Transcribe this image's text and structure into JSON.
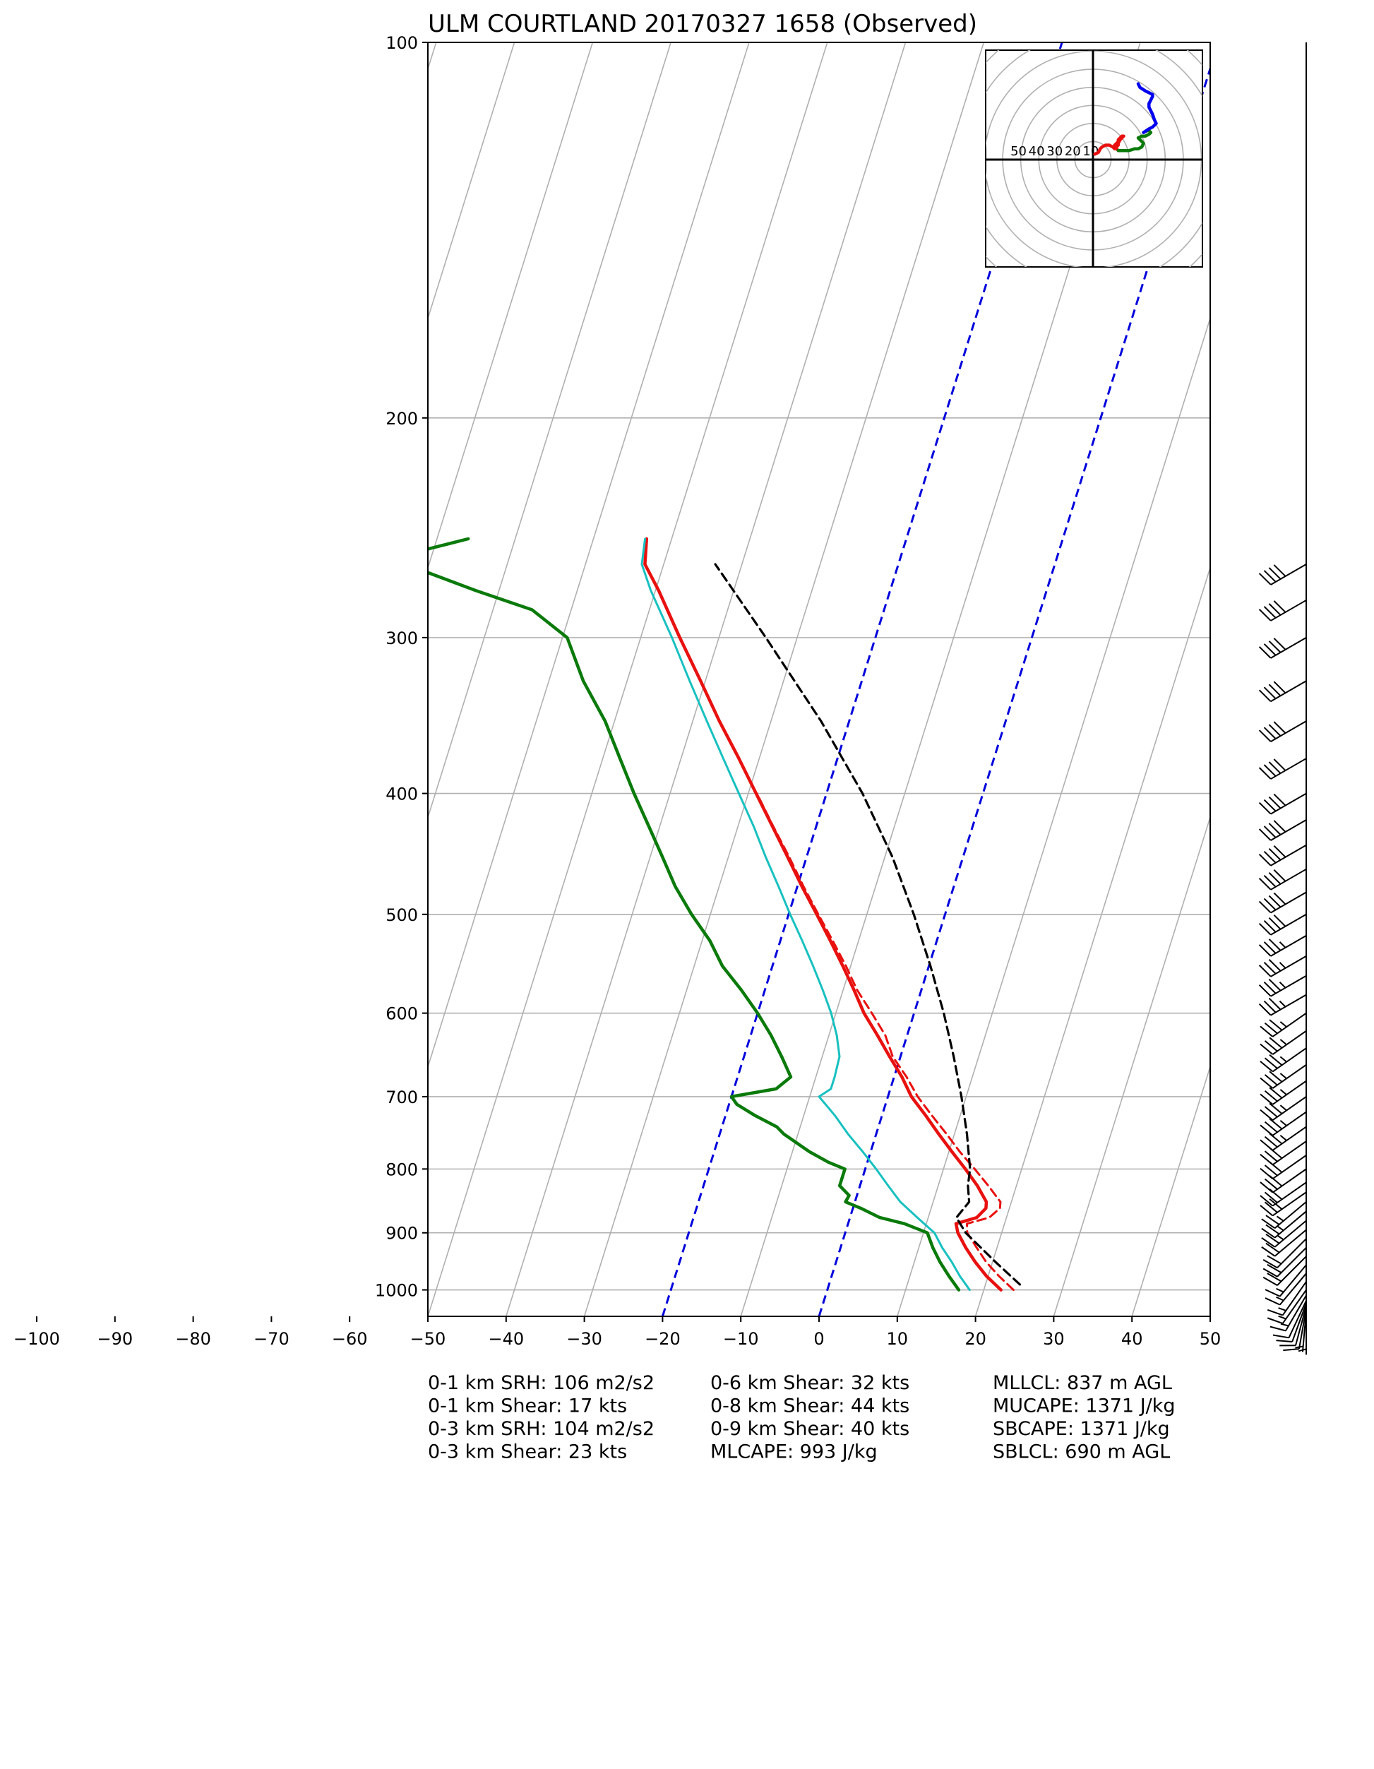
{
  "chart_data": [
    {
      "type": "line",
      "subtype": "skew-t log-p sounding",
      "title": "ULM COURTLAND 20170327 1658   (Observed)",
      "xlabel": "",
      "ylabel": "",
      "x_ticks": [
        -100,
        -90,
        -80,
        -70,
        -60,
        -50,
        -40,
        -30,
        -20,
        -10,
        0,
        10,
        20,
        30,
        40,
        50
      ],
      "y_ticks": [
        100,
        200,
        300,
        400,
        500,
        600,
        700,
        800,
        900,
        1000
      ],
      "xlim": [
        -50,
        50
      ],
      "ylim": [
        1050,
        100
      ],
      "yscale": "log",
      "grid": true,
      "skew_degrees_per_decade": 50,
      "colors": {
        "temperature": "#e8110f",
        "virtual_temperature": "#e8110f",
        "dewpoint": "#0a7a0a",
        "wetbulb": "#18c0c0",
        "parcel": "#000000",
        "isotherms_highlight": "#0000dd",
        "grid": "#b0b0b0",
        "hodo_low": "#e8110f",
        "hodo_mid": "#0a7a0a",
        "hodo_high": "#0000ee"
      },
      "highlight_isotherms": [
        -20,
        0
      ],
      "series": [
        {
          "key": "temperature",
          "pressure": [
            1000,
            975,
            950,
            925,
            900,
            885,
            875,
            860,
            850,
            825,
            800,
            775,
            750,
            725,
            700,
            675,
            650,
            625,
            600,
            575,
            550,
            525,
            500,
            475,
            450,
            425,
            400,
            375,
            350,
            325,
            300,
            275,
            262,
            250
          ],
          "values": [
            22.2,
            19.8,
            17.8,
            16.0,
            14.4,
            13.8,
            16.2,
            17.0,
            16.8,
            15.0,
            12.8,
            10.4,
            8.0,
            5.6,
            3.0,
            1.0,
            -1.4,
            -3.8,
            -6.4,
            -8.6,
            -11.0,
            -13.6,
            -16.4,
            -19.4,
            -22.4,
            -25.6,
            -29.0,
            -32.6,
            -36.6,
            -40.6,
            -45.0,
            -49.6,
            -52.4,
            -53.2
          ]
        },
        {
          "key": "virtual_temperature",
          "pressure": [
            1000,
            975,
            950,
            925,
            900,
            885,
            875,
            860,
            850,
            825,
            800,
            775,
            750,
            725,
            700,
            675,
            650,
            625,
            600,
            575,
            550,
            525,
            500,
            475,
            450,
            425,
            400
          ],
          "values": [
            23.8,
            21.4,
            19.2,
            17.4,
            15.6,
            15.2,
            17.8,
            18.8,
            18.6,
            16.4,
            14.0,
            11.4,
            9.0,
            6.4,
            3.8,
            1.6,
            -1.0,
            -2.8,
            -5.4,
            -8.2,
            -10.6,
            -13.3,
            -16.2,
            -19.2,
            -22.2,
            -25.5,
            -28.9
          ]
        },
        {
          "key": "dewpoint",
          "pressure": [
            1000,
            975,
            950,
            925,
            900,
            885,
            875,
            860,
            850,
            840,
            825,
            800,
            790,
            775,
            750,
            740,
            725,
            710,
            700,
            690,
            675,
            650,
            625,
            600,
            575,
            550,
            525,
            500,
            475,
            450,
            425,
            400,
            375,
            350,
            325,
            300,
            285,
            275,
            262,
            255,
            250
          ],
          "values": [
            16.8,
            15.0,
            13.3,
            11.8,
            10.5,
            7.2,
            3.8,
            1.0,
            -1.2,
            -1.0,
            -2.6,
            -2.6,
            -5.0,
            -7.8,
            -11.8,
            -13.0,
            -16.2,
            -19.0,
            -20.0,
            -14.6,
            -13.2,
            -15.2,
            -17.4,
            -20.0,
            -23.0,
            -26.4,
            -29.0,
            -32.4,
            -35.6,
            -38.4,
            -41.4,
            -44.6,
            -47.8,
            -51.2,
            -55.6,
            -59.4,
            -65.0,
            -73.0,
            -83.0,
            -81.0,
            -76.0
          ]
        },
        {
          "key": "wetbulb",
          "pressure": [
            1000,
            975,
            950,
            925,
            900,
            875,
            850,
            825,
            800,
            775,
            750,
            725,
            700,
            690,
            675,
            650,
            625,
            600,
            575,
            550,
            525,
            500,
            475,
            450,
            425,
            400,
            375,
            350,
            325,
            300,
            275,
            262,
            250
          ],
          "values": [
            18.2,
            16.4,
            14.8,
            13.0,
            11.4,
            8.6,
            5.8,
            3.6,
            1.4,
            -1.0,
            -3.6,
            -6.0,
            -8.8,
            -7.6,
            -7.6,
            -7.8,
            -9.0,
            -10.6,
            -12.6,
            -14.8,
            -17.2,
            -19.8,
            -22.4,
            -25.2,
            -28.0,
            -31.2,
            -34.6,
            -38.2,
            -42.0,
            -46.0,
            -50.6,
            -52.8,
            -53.4
          ]
        },
        {
          "key": "parcel",
          "pressure": [
            990,
            950,
            900,
            875,
            850,
            825,
            800,
            750,
            700,
            650,
            600,
            550,
            500,
            450,
            400,
            350,
            300,
            262
          ],
          "values": [
            24.4,
            20.4,
            15.4,
            13.6,
            14.6,
            13.8,
            13.4,
            11.6,
            9.4,
            6.8,
            3.8,
            0.2,
            -4.0,
            -9.0,
            -15.4,
            -23.6,
            -34.0,
            -43.4
          ]
        }
      ],
      "wind_barbs": {
        "pressure": [
          1045,
          1040,
          1035,
          1030,
          1025,
          1020,
          1010,
          1000,
          985,
          970,
          955,
          940,
          925,
          910,
          895,
          880,
          865,
          850,
          835,
          820,
          800,
          780,
          760,
          740,
          720,
          700,
          680,
          660,
          640,
          620,
          600,
          580,
          560,
          540,
          520,
          500,
          480,
          460,
          440,
          420,
          400,
          375,
          350,
          325,
          300,
          280,
          262
        ],
        "speed_kts": [
          5,
          5,
          10,
          10,
          10,
          10,
          15,
          15,
          15,
          15,
          15,
          20,
          20,
          20,
          20,
          25,
          25,
          25,
          30,
          30,
          30,
          30,
          30,
          35,
          35,
          35,
          35,
          35,
          35,
          35,
          35,
          35,
          35,
          35,
          35,
          40,
          40,
          40,
          40,
          40,
          40,
          40,
          40,
          40,
          40,
          40,
          40
        ],
        "direction_deg": [
          180,
          185,
          190,
          195,
          200,
          205,
          210,
          215,
          215,
          220,
          220,
          225,
          225,
          225,
          230,
          230,
          230,
          230,
          235,
          235,
          235,
          235,
          235,
          235,
          235,
          235,
          235,
          235,
          235,
          235,
          235,
          240,
          240,
          240,
          240,
          240,
          240,
          240,
          240,
          240,
          240,
          240,
          240,
          240,
          240,
          240,
          240
        ]
      }
    },
    {
      "type": "line",
      "subtype": "hodograph",
      "ring_labels": [
        "50",
        "40",
        "30",
        "20",
        "10"
      ],
      "ring_spacing_kts": 10,
      "max_kts": 60,
      "series": [
        {
          "key": "hodo_low",
          "u": [
            1,
            3,
            4,
            5,
            7,
            9,
            11,
            12,
            13,
            14,
            14,
            15,
            16,
            17,
            16,
            15,
            14,
            14,
            13,
            12,
            12,
            13,
            14
          ],
          "v": [
            3,
            4,
            6,
            7,
            8,
            8,
            7,
            6,
            7,
            8,
            9,
            11,
            12,
            13,
            13,
            12,
            11,
            10,
            9,
            8,
            7,
            6,
            5
          ]
        },
        {
          "key": "hodo_mid",
          "u": [
            14,
            17,
            20,
            23,
            25,
            27,
            28,
            27,
            26,
            25,
            27,
            29,
            31,
            32,
            31,
            30,
            28
          ],
          "v": [
            5,
            5,
            5,
            6,
            6,
            7,
            9,
            10,
            11,
            12,
            13,
            13,
            14,
            15,
            16,
            16,
            15
          ]
        },
        {
          "key": "hodo_high",
          "u": [
            28,
            31,
            33,
            34,
            35,
            34,
            33,
            32,
            31,
            31,
            32,
            33,
            33,
            31,
            29,
            26,
            25
          ],
          "v": [
            15,
            17,
            18,
            19,
            20,
            22,
            25,
            27,
            29,
            31,
            33,
            35,
            36,
            37,
            38,
            40,
            42
          ]
        }
      ]
    }
  ],
  "stats": {
    "col1": [
      "0-1 km SRH: 106 m2/s2",
      "0-1 km Shear: 17 kts",
      "0-3 km SRH: 104 m2/s2",
      "0-3 km Shear: 23 kts"
    ],
    "col2": [
      "0-6 km Shear: 32 kts",
      "0-8 km Shear: 44 kts",
      "0-9 km Shear: 40 kts",
      "MLCAPE: 993 J/kg"
    ],
    "col3": [
      "MLLCL: 837 m AGL",
      "MUCAPE: 1371 J/kg",
      "SBCAPE: 1371 J/kg",
      "SBLCL: 690 m AGL"
    ]
  }
}
